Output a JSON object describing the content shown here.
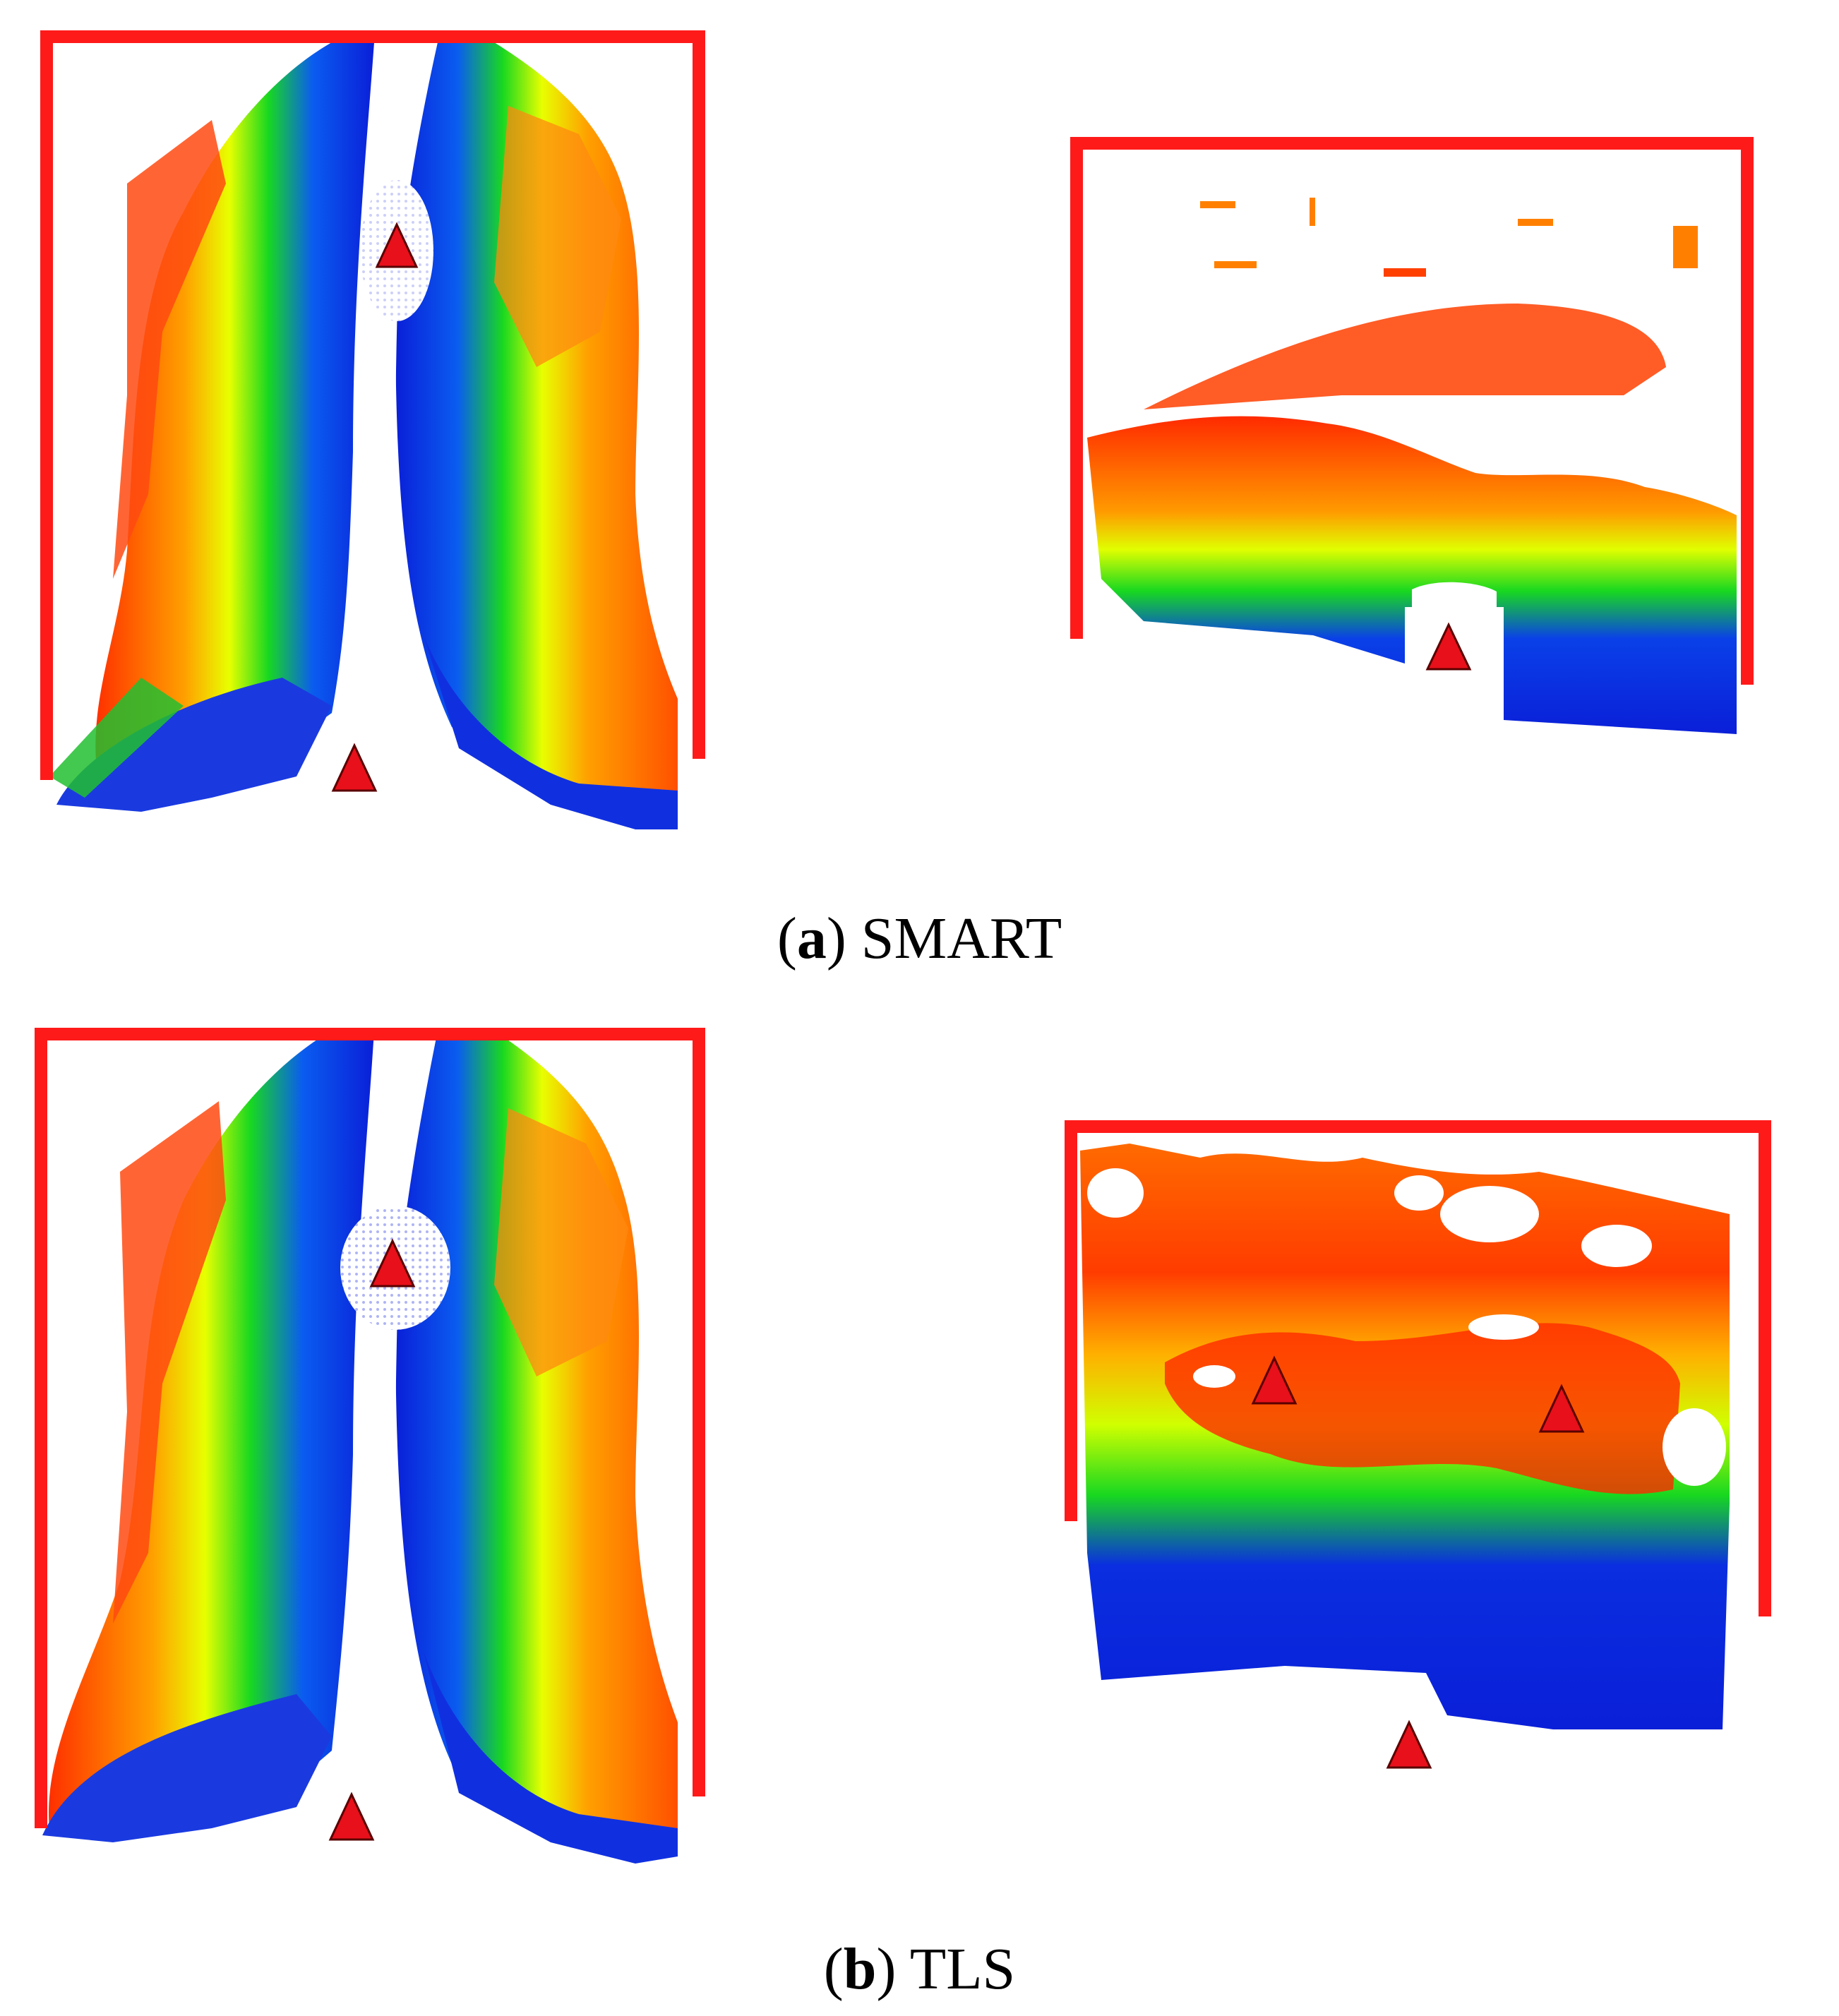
{
  "figure": {
    "panels": [
      {
        "id": "a",
        "caption_letter": "a",
        "caption_name": "SMART",
        "views": [
          {
            "name": "top-view",
            "scanner_markers": 2
          },
          {
            "name": "side-view",
            "scanner_markers": 1
          }
        ]
      },
      {
        "id": "b",
        "caption_letter": "b",
        "caption_name": "TLS",
        "views": [
          {
            "name": "top-view",
            "scanner_markers": 2
          },
          {
            "name": "side-view",
            "scanner_markers": 3
          }
        ]
      }
    ],
    "colors": {
      "frame": "#ff1a1a",
      "marker_fill": "#e8101a",
      "marker_stroke": "#5a0000",
      "color_ramp": [
        "#0a1fd8",
        "#0078ff",
        "#18d820",
        "#b8ff00",
        "#ffe000",
        "#ff8a00",
        "#ff2a00"
      ]
    },
    "icons": {
      "marker": "triangle-marker-icon",
      "frame": "bracket-frame"
    }
  }
}
